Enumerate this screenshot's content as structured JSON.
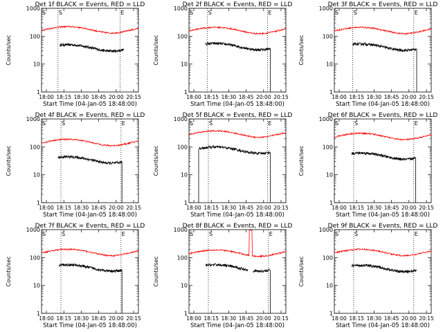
{
  "figure": {
    "ylabel": "Counts/sec",
    "xlabel": "Start Time (04-Jan-05 18:48:00)",
    "series_colors": {
      "events": "#000000",
      "lld": "#ff0000"
    },
    "marker_labels": [
      "S",
      "E"
    ]
  },
  "chart_data": [
    {
      "type": "line",
      "title": "Det 1f BLACK = Events, RED = LLD",
      "xlabel": "Start Time (04-Jan-05 18:48:00)",
      "ylabel": "Counts/sec",
      "yscale": "log",
      "ylim": [
        1,
        1000
      ],
      "y_ticks": [
        1,
        10,
        100,
        1000
      ],
      "x_ticks": [
        "18:00",
        "18:15",
        "18:30",
        "18:45",
        "20:00",
        "20:15"
      ],
      "markers": {
        "S": 0.17,
        "E": 0.81
      },
      "series": [
        {
          "name": "Events",
          "color": "#000000",
          "x_range": [
            0.19,
            0.85
          ],
          "baseline": 45,
          "dropout": null
        },
        {
          "name": "LLD",
          "color": "#ff0000",
          "x_range": [
            0.0,
            1.0
          ],
          "baseline": 200,
          "spike": null
        }
      ]
    },
    {
      "type": "line",
      "title": "Det 2f BLACK = Events, RED = LLD",
      "xlabel": "Start Time (04-Jan-05 18:48:00)",
      "ylabel": "Counts/sec",
      "yscale": "log",
      "ylim": [
        1,
        1000
      ],
      "y_ticks": [
        1,
        10,
        100,
        1000
      ],
      "x_ticks": [
        "18:00",
        "18:15",
        "18:30",
        "18:45",
        "20:00",
        "20:15"
      ],
      "markers": {
        "S": 0.19,
        "E": 0.81
      },
      "series": [
        {
          "name": "Events",
          "color": "#000000",
          "x_range": [
            0.17,
            0.84
          ],
          "baseline": 50,
          "dropout": 0.84
        },
        {
          "name": "LLD",
          "color": "#ff0000",
          "x_range": [
            0.0,
            1.0
          ],
          "baseline": 190,
          "spike": null
        }
      ]
    },
    {
      "type": "line",
      "title": "Det 3f BLACK = Events, RED = LLD",
      "xlabel": "Start Time (04-Jan-05 18:48:00)",
      "ylabel": "Counts/sec",
      "yscale": "log",
      "ylim": [
        1,
        1000
      ],
      "y_ticks": [
        1,
        10,
        100,
        1000
      ],
      "x_ticks": [
        "18:00",
        "18:15",
        "18:30",
        "18:45",
        "20:00",
        "20:15"
      ],
      "markers": {
        "S": 0.19,
        "E": 0.82
      },
      "series": [
        {
          "name": "Events",
          "color": "#000000",
          "x_range": [
            0.19,
            0.85
          ],
          "baseline": 48,
          "dropout": 0.85
        },
        {
          "name": "LLD",
          "color": "#ff0000",
          "x_range": [
            0.0,
            1.0
          ],
          "baseline": 190,
          "spike": null
        }
      ]
    },
    {
      "type": "line",
      "title": "Det 4f BLACK = Events, RED = LLD",
      "xlabel": "Start Time (04-Jan-05 18:48:00)",
      "ylabel": "Counts/sec",
      "yscale": "log",
      "ylim": [
        1,
        1000
      ],
      "y_ticks": [
        1,
        10,
        100,
        1000
      ],
      "x_ticks": [
        "18:00",
        "18:15",
        "18:30",
        "18:45",
        "20:00",
        "20:15"
      ],
      "markers": {
        "S": 0.2,
        "E": 0.82
      },
      "series": [
        {
          "name": "Events",
          "color": "#000000",
          "x_range": [
            0.17,
            0.83
          ],
          "baseline": 40,
          "dropout": 0.83
        },
        {
          "name": "LLD",
          "color": "#ff0000",
          "x_range": [
            0.0,
            1.0
          ],
          "baseline": 170,
          "spike": null
        }
      ]
    },
    {
      "type": "line",
      "title": "Det 5f BLACK = Events, RED = LLD",
      "xlabel": "Start Time (04-Jan-05 18:48:00)",
      "ylabel": "Counts/sec",
      "yscale": "log",
      "ylim": [
        1,
        1000
      ],
      "y_ticks": [
        1,
        10,
        100,
        1000
      ],
      "x_ticks": [
        "18:00",
        "18:15",
        "18:30",
        "18:45",
        "20:00",
        "20:15"
      ],
      "markers": {
        "S": 0.2,
        "E": 0.81
      },
      "series": [
        {
          "name": "Events",
          "color": "#000000",
          "x_range": [
            0.1,
            0.84
          ],
          "baseline": 90,
          "dropout": 0.84,
          "start_dropout": 0.1
        },
        {
          "name": "LLD",
          "color": "#ff0000",
          "x_range": [
            0.0,
            1.0
          ],
          "baseline": 340,
          "spike": null
        }
      ]
    },
    {
      "type": "line",
      "title": "Det 6f BLACK = Events, RED = LLD",
      "xlabel": "Start Time (04-Jan-05 18:48:00)",
      "ylabel": "Counts/sec",
      "yscale": "log",
      "ylim": [
        1,
        1000
      ],
      "y_ticks": [
        1,
        10,
        100,
        1000
      ],
      "x_ticks": [
        "18:00",
        "18:15",
        "18:30",
        "18:45",
        "20:00",
        "20:15"
      ],
      "markers": {
        "S": 0.2,
        "E": 0.82
      },
      "series": [
        {
          "name": "Events",
          "color": "#000000",
          "x_range": [
            0.18,
            0.84
          ],
          "baseline": 55,
          "dropout": 0.84
        },
        {
          "name": "LLD",
          "color": "#ff0000",
          "x_range": [
            0.0,
            1.0
          ],
          "baseline": 280,
          "spike": null
        }
      ]
    },
    {
      "type": "line",
      "title": "Det 7f BLACK = Events, RED = LLD",
      "xlabel": "Start Time (04-Jan-05 18:48:00)",
      "ylabel": "Counts/sec",
      "yscale": "log",
      "ylim": [
        1,
        1000
      ],
      "y_ticks": [
        1,
        10,
        100,
        1000
      ],
      "x_ticks": [
        "18:00",
        "18:15",
        "18:30",
        "18:45",
        "20:00",
        "20:15"
      ],
      "markers": {
        "S": 0.2,
        "E": 0.82
      },
      "series": [
        {
          "name": "Events",
          "color": "#000000",
          "x_range": [
            0.18,
            0.83
          ],
          "baseline": 50,
          "dropout": 0.83
        },
        {
          "name": "LLD",
          "color": "#ff0000",
          "x_range": [
            0.0,
            1.0
          ],
          "baseline": 180,
          "spike": null
        }
      ]
    },
    {
      "type": "line",
      "title": "Det 8f BLACK = Events, RED = LLD",
      "xlabel": "Start Time (04-Jan-05 18:48:00)",
      "ylabel": "Counts/sec",
      "yscale": "log",
      "ylim": [
        1,
        1000
      ],
      "y_ticks": [
        1,
        10,
        100,
        1000
      ],
      "x_ticks": [
        "18:00",
        "18:15",
        "18:30",
        "18:45",
        "20:00",
        "20:15"
      ],
      "markers": {
        "S": 0.2,
        "E": 0.82
      },
      "series": [
        {
          "name": "Events",
          "color": "#000000",
          "x_range": [
            0.17,
            0.84
          ],
          "baseline": 50,
          "dropout": 0.84,
          "gap": [
            0.61,
            0.66
          ]
        },
        {
          "name": "LLD",
          "color": "#ff0000",
          "x_range": [
            0.0,
            1.0
          ],
          "baseline": 170,
          "spike": [
            0.62,
            0.65
          ]
        }
      ]
    },
    {
      "type": "line",
      "title": "Det 9f BLACK = Events, RED = LLD",
      "xlabel": "Start Time (04-Jan-05 18:48:00)",
      "ylabel": "Counts/sec",
      "yscale": "log",
      "ylim": [
        1,
        1000
      ],
      "y_ticks": [
        1,
        10,
        100,
        1000
      ],
      "x_ticks": [
        "18:00",
        "18:15",
        "18:30",
        "18:45",
        "20:00",
        "20:15"
      ],
      "markers": {
        "S": 0.2,
        "E": 0.82
      },
      "series": [
        {
          "name": "Events",
          "color": "#000000",
          "x_range": [
            0.18,
            0.85
          ],
          "baseline": 48,
          "dropout": null
        },
        {
          "name": "LLD",
          "color": "#ff0000",
          "x_range": [
            0.0,
            1.0
          ],
          "baseline": 180,
          "spike": null
        }
      ]
    }
  ]
}
